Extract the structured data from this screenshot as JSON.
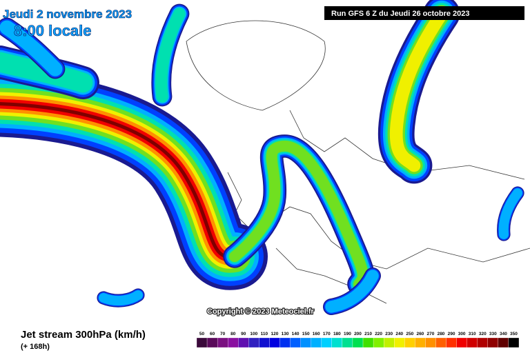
{
  "header": {
    "date": "Jeudi 2 novembre 2023",
    "time": "8:00 locale",
    "run": "Run GFS 6 Z du Jeudi 26 octobre 2023"
  },
  "copyright": "Copyright © 2023 Meteociel.fr",
  "footer": {
    "title": "Jet stream 300hPa (km/h)",
    "lead": "(+ 168h)"
  },
  "legend": {
    "levels": [
      50,
      60,
      70,
      80,
      90,
      100,
      110,
      120,
      130,
      140,
      150,
      160,
      170,
      180,
      190,
      200,
      210,
      220,
      230,
      240,
      250,
      260,
      270,
      280,
      290,
      300,
      310,
      320,
      330,
      340,
      350
    ],
    "colors": [
      "#3a0a3a",
      "#5a0a5a",
      "#7a1080",
      "#8a10a0",
      "#6010b0",
      "#3020c0",
      "#1010d0",
      "#0000e0",
      "#0030f0",
      "#0060ff",
      "#0090ff",
      "#00b0ff",
      "#00d0ff",
      "#00e0d0",
      "#00e090",
      "#00e050",
      "#40e000",
      "#80f000",
      "#c0f000",
      "#f0f000",
      "#ffd000",
      "#ffb000",
      "#ff9000",
      "#ff6000",
      "#ff3000",
      "#f00000",
      "#d00000",
      "#b00000",
      "#900000",
      "#600000",
      "#000000"
    ]
  }
}
